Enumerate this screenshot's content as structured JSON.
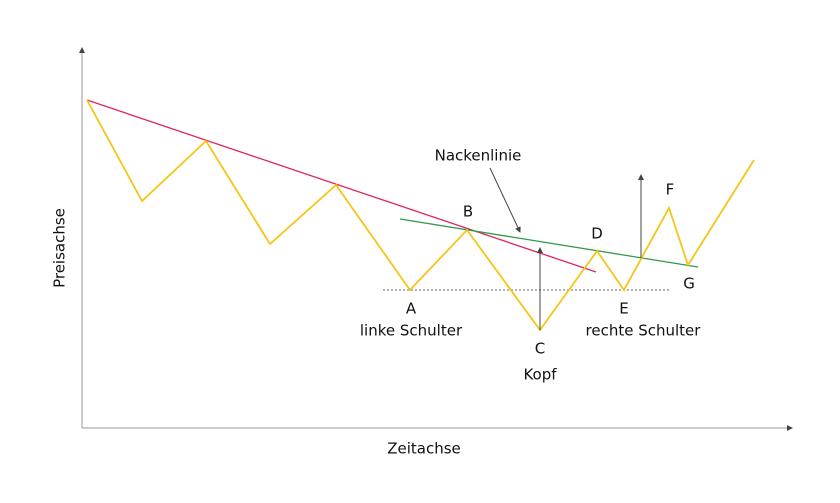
{
  "axes": {
    "y_label": "Preisachse",
    "x_label": "Zeitachse"
  },
  "neckline_label": "Nackenlinie",
  "points": [
    "A",
    "B",
    "C",
    "D",
    "E",
    "F",
    "G"
  ],
  "captions": {
    "left_shoulder": "linke Schulter",
    "head": "Kopf",
    "right_shoulder": "rechte Schulter"
  }
}
